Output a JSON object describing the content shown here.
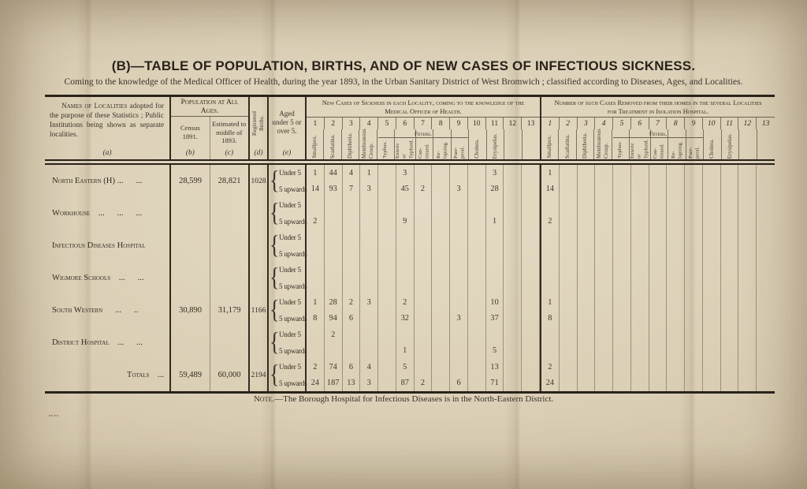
{
  "page": {
    "title": "(B)—TABLE OF POPULATION, BIRTHS, AND OF NEW CASES OF INFECTIOUS SICKNESS.",
    "subtitle": "Coming to the knowledge of the Medical Officer of Health, during the year 1893, in the Urban Sanitary District of West Bromwich ; classified according to Diseases, Ages, and Localities.",
    "note_lead": "Note.",
    "note_rest": "—The Borough Hospital for Infectious Diseases is in the North-Eastern District."
  },
  "header": {
    "names_lead": "Names of Localities",
    "names_rest": " adopted for the purpose of these Statistics ; Public Institutions being shown as separate localities.",
    "letters": [
      "(a)",
      "(b)",
      "(c)",
      "(d)",
      "(e)"
    ],
    "population_group": "Population at All Ages.",
    "census": "Census 1891.",
    "estimated": "Estimated to middle of 1893.",
    "births": "Registered Births.",
    "aged": "Aged under 5 or over 5.",
    "cases_title": "New Cases of Sickness in each Locality, coming to the knowledge of the Medical Officer of Health.",
    "removed_title": "Number of such Cases Removed from their homes in the several Localities for Treatment in Isolation Hospital.",
    "fevers_label": "Fevers.",
    "col_numbers": [
      "1",
      "2",
      "3",
      "4",
      "5",
      "6",
      "7",
      "8",
      "9",
      "10",
      "11",
      "12",
      "13"
    ],
    "diseases": [
      "Smallpox.",
      "Scarlatina.",
      "Diphtheria.",
      "Membranous Croup.",
      "Typhus.",
      "Enteric or Typhoid.",
      "Con- tinued.",
      "Re- lapsing.",
      "Puer- peral.",
      "Cholera.",
      "Erysipelas.",
      "",
      ""
    ]
  },
  "table": {
    "age_labels": {
      "under": "Under 5",
      "over": "5 upwards"
    },
    "rows": [
      {
        "name": "North Eastern (H) ...  ...",
        "census": "28,599",
        "estimated": "28,821",
        "births": "1028",
        "total": false,
        "cases_u5": [
          "1",
          "44",
          "4",
          "1",
          "",
          "3",
          "",
          "",
          "",
          "",
          "3",
          "",
          ""
        ],
        "cases_5up": [
          "14",
          "93",
          "7",
          "3",
          "",
          "45",
          "2",
          "",
          "3",
          "",
          "28",
          "",
          ""
        ],
        "removed_u5": [
          "1",
          "",
          "",
          "",
          "",
          "",
          "",
          "",
          "",
          "",
          "",
          "",
          ""
        ],
        "removed_5up": [
          "14",
          "",
          "",
          "",
          "",
          "",
          "",
          "",
          "",
          "",
          "",
          "",
          ""
        ]
      },
      {
        "name": "Workhouse ...  ...  ...",
        "census": "",
        "estimated": "",
        "births": "",
        "total": false,
        "cases_u5": [
          "",
          "",
          "",
          "",
          "",
          "",
          "",
          "",
          "",
          "",
          "",
          "",
          ""
        ],
        "cases_5up": [
          "2",
          "",
          "",
          "",
          "",
          "9",
          "",
          "",
          "",
          "",
          "1",
          "",
          ""
        ],
        "removed_u5": [
          "",
          "",
          "",
          "",
          "",
          "",
          "",
          "",
          "",
          "",
          "",
          "",
          ""
        ],
        "removed_5up": [
          "2",
          "",
          "",
          "",
          "",
          "",
          "",
          "",
          "",
          "",
          "",
          "",
          ""
        ]
      },
      {
        "name": "Infectious Diseases Hospital",
        "census": "",
        "estimated": "",
        "births": "",
        "total": false,
        "cases_u5": [
          "",
          "",
          "",
          "",
          "",
          "",
          "",
          "",
          "",
          "",
          "",
          "",
          ""
        ],
        "cases_5up": [
          "",
          "",
          "",
          "",
          "",
          "",
          "",
          "",
          "",
          "",
          "",
          "",
          ""
        ],
        "removed_u5": [
          "",
          "",
          "",
          "",
          "",
          "",
          "",
          "",
          "",
          "",
          "",
          "",
          ""
        ],
        "removed_5up": [
          "",
          "",
          "",
          "",
          "",
          "",
          "",
          "",
          "",
          "",
          "",
          "",
          ""
        ]
      },
      {
        "name": "Wigmore Schools ...  ...",
        "census": "",
        "estimated": "",
        "births": "",
        "total": false,
        "cases_u5": [
          "",
          "",
          "",
          "",
          "",
          "",
          "",
          "",
          "",
          "",
          "",
          "",
          ""
        ],
        "cases_5up": [
          "",
          "",
          "",
          "",
          "",
          "",
          "",
          "",
          "",
          "",
          "",
          "",
          ""
        ],
        "removed_u5": [
          "",
          "",
          "",
          "",
          "",
          "",
          "",
          "",
          "",
          "",
          "",
          "",
          ""
        ],
        "removed_5up": [
          "",
          "",
          "",
          "",
          "",
          "",
          "",
          "",
          "",
          "",
          "",
          "",
          ""
        ]
      },
      {
        "name": "South Western  ...  ..",
        "census": "30,890",
        "estimated": "31,179",
        "births": "1166",
        "total": false,
        "cases_u5": [
          "1",
          "28",
          "2",
          "3",
          "",
          "2",
          "",
          "",
          "",
          "",
          "10",
          "",
          ""
        ],
        "cases_5up": [
          "8",
          "94",
          "6",
          "",
          "",
          "32",
          "",
          "",
          "3",
          "",
          "37",
          "",
          ""
        ],
        "removed_u5": [
          "1",
          "",
          "",
          "",
          "",
          "",
          "",
          "",
          "",
          "",
          "",
          "",
          ""
        ],
        "removed_5up": [
          "8",
          "",
          "",
          "",
          "",
          "",
          "",
          "",
          "",
          "",
          "",
          "",
          ""
        ]
      },
      {
        "name": "District Hospital ...  ...",
        "census": "",
        "estimated": "",
        "births": "",
        "total": false,
        "cases_u5": [
          "",
          "2",
          "",
          "",
          "",
          "",
          "",
          "",
          "",
          "",
          "",
          "",
          ""
        ],
        "cases_5up": [
          "",
          "",
          "",
          "",
          "",
          "1",
          "",
          "",
          "",
          "",
          "5",
          "",
          ""
        ],
        "removed_u5": [
          "",
          "",
          "",
          "",
          "",
          "",
          "",
          "",
          "",
          "",
          "",
          "",
          ""
        ],
        "removed_5up": [
          "",
          "",
          "",
          "",
          "",
          "",
          "",
          "",
          "",
          "",
          "",
          "",
          ""
        ]
      },
      {
        "name": "Totals ...",
        "census": "59,489",
        "estimated": "60,000",
        "births": "2194",
        "total": true,
        "cases_u5": [
          "2",
          "74",
          "6",
          "4",
          "",
          "5",
          "",
          "",
          "",
          "",
          "13",
          "",
          ""
        ],
        "cases_5up": [
          "24",
          "187",
          "13",
          "3",
          "",
          "87",
          "2",
          "",
          "6",
          "",
          "71",
          "",
          ""
        ],
        "removed_u5": [
          "2",
          "",
          "",
          "",
          "",
          "",
          "",
          "",
          "",
          "",
          "",
          "",
          ""
        ],
        "removed_5up": [
          "24",
          "",
          "",
          "",
          "",
          "",
          "",
          "",
          "",
          "",
          "",
          "",
          ""
        ]
      }
    ]
  }
}
